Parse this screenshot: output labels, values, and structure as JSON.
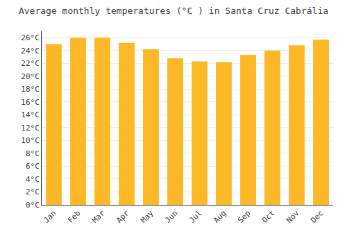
{
  "chart_data": {
    "type": "bar",
    "title": "Average monthly temperatures (°C ) in Santa Cruz Cabrália",
    "categories": [
      "Jan",
      "Feb",
      "Mar",
      "Apr",
      "May",
      "Jun",
      "Jul",
      "Aug",
      "Sep",
      "Oct",
      "Nov",
      "Dec"
    ],
    "values": [
      25.0,
      26.0,
      26.0,
      25.2,
      24.2,
      22.8,
      22.3,
      22.2,
      23.3,
      24.0,
      24.8,
      25.7
    ],
    "color": "#FDB827",
    "ylim": [
      0,
      27
    ],
    "yticks": [
      {
        "value": 0,
        "label": "0°C"
      },
      {
        "value": 2,
        "label": "2°C"
      },
      {
        "value": 4,
        "label": "4°C"
      },
      {
        "value": 6,
        "label": "6°C"
      },
      {
        "value": 8,
        "label": "8°C"
      },
      {
        "value": 10,
        "label": "10°C"
      },
      {
        "value": 12,
        "label": "12°C"
      },
      {
        "value": 14,
        "label": "14°C"
      },
      {
        "value": 16,
        "label": "16°C"
      },
      {
        "value": 18,
        "label": "18°C"
      },
      {
        "value": 20,
        "label": "20°C"
      },
      {
        "value": 22,
        "label": "22°C"
      },
      {
        "value": 24,
        "label": "24°C"
      },
      {
        "value": 26,
        "label": "26°C"
      }
    ],
    "grid": true
  }
}
